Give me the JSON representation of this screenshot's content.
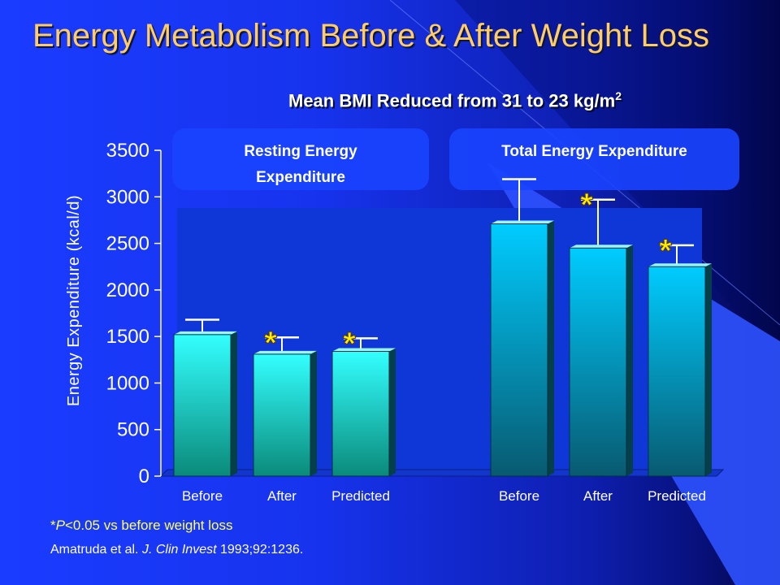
{
  "slide": {
    "title": "Energy Metabolism Before & After Weight Loss",
    "subtitle_main": "Mean BMI Reduced from 31 to 23 kg/m",
    "subtitle_sup": "2",
    "footnote_pre": "*",
    "footnote_p": "P",
    "footnote_post": "<0.05 vs before weight loss",
    "citation_authors": "Amatruda et al. ",
    "citation_journal": "J. Clin Invest",
    "citation_rest": " 1993;92:1236."
  },
  "colors": {
    "title": "#ffcc66",
    "significance_star": "#ffee00",
    "ree_bar_top": "#33ffff",
    "tee_bar_top": "#00ccff",
    "group_label_box": "#1a44ff"
  },
  "chart_data": {
    "type": "bar",
    "ylabel": "Energy Expenditure (kcal/d)",
    "ylim": [
      0,
      3500
    ],
    "yticks": [
      0,
      500,
      1000,
      1500,
      2000,
      2500,
      3000,
      3500
    ],
    "grid": false,
    "groups": [
      {
        "label": "Resting Energy Expenditure",
        "categories": [
          "Before",
          "After",
          "Predicted"
        ],
        "values": [
          1520,
          1310,
          1340
        ],
        "error_upper": [
          1680,
          1490,
          1480
        ],
        "significant": [
          false,
          true,
          true
        ]
      },
      {
        "label": "Total Energy Expenditure",
        "categories": [
          "Before",
          "After",
          "Predicted"
        ],
        "values": [
          2710,
          2450,
          2250
        ],
        "error_upper": [
          3190,
          2970,
          2480
        ],
        "significant": [
          false,
          true,
          true
        ]
      }
    ],
    "significance_marker": "*"
  }
}
